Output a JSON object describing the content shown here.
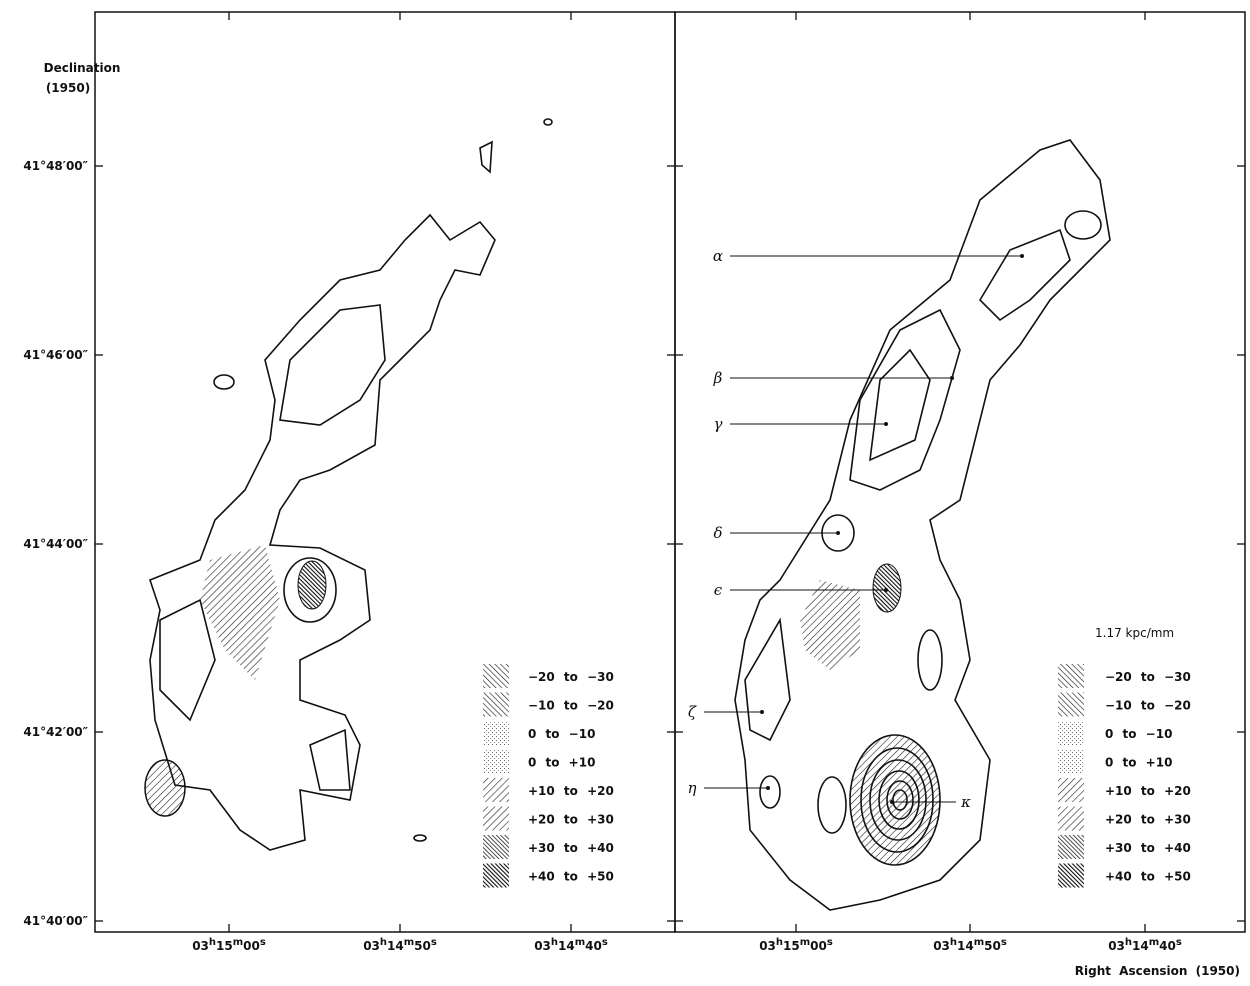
{
  "axes": {
    "y_label": "Declination",
    "y_label_epoch": "(1950)",
    "x_label": "Right Ascension (1950)",
    "dec_ticks": [
      "41°48′00″",
      "41°46′00″",
      "41°44′00″",
      "41°42′00″",
      "41°40′00″"
    ],
    "ra_ticks": [
      [
        "03",
        "h",
        "15",
        "m",
        "00",
        "s"
      ],
      [
        "03",
        "h",
        "14",
        "m",
        "50",
        "s"
      ],
      [
        "03",
        "h",
        "14",
        "m",
        "40",
        "s"
      ]
    ]
  },
  "left_panel": {
    "legend": [
      "−20 to −30",
      "−10 to −20",
      "0 to −10",
      "0 to +10",
      "+10 to +20",
      "+20 to +30",
      "+30 to +40",
      "+40 to +50"
    ]
  },
  "right_panel": {
    "scale": "1.17 kpc/mm",
    "legend": [
      "−20 to −30",
      "−10 to −20",
      "0 to −10",
      "0 to +10",
      "+10 to +20",
      "+20 to +30",
      "+30 to +40",
      "+40 to +50"
    ],
    "features": [
      "α",
      "β",
      "γ",
      "δ",
      "ϵ",
      "ζ",
      "η",
      "κ"
    ]
  }
}
